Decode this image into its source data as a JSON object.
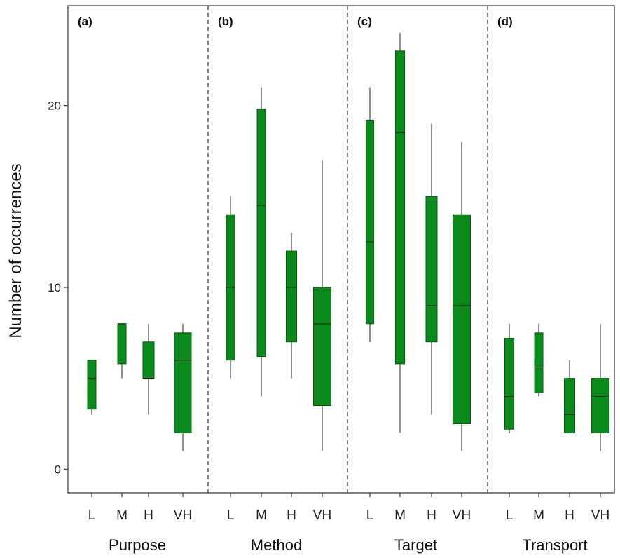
{
  "chart_data": {
    "type": "box",
    "ylabel": "Number of occurrences",
    "ylim": [
      -1.3,
      25.5
    ],
    "yticks": [
      0,
      10,
      20
    ],
    "colors": {
      "box_fill": "#0b8a1c",
      "box_stroke": "#0a5a12"
    },
    "panels": [
      {
        "label": "(a)",
        "group": "Purpose",
        "categories": [
          "L",
          "M",
          "H",
          "VH"
        ],
        "boxes": [
          {
            "min": 3.0,
            "q1": 3.3,
            "median": 5.0,
            "q3": 6.0,
            "max": 6.0
          },
          {
            "min": 5.0,
            "q1": 5.8,
            "median": 8.0,
            "q3": 8.0,
            "max": 8.0
          },
          {
            "min": 3.0,
            "q1": 5.0,
            "median": 5.0,
            "q3": 7.0,
            "max": 8.0
          },
          {
            "min": 1.0,
            "q1": 2.0,
            "median": 6.0,
            "q3": 7.5,
            "max": 8.0
          }
        ]
      },
      {
        "label": "(b)",
        "group": "Method",
        "categories": [
          "L",
          "M",
          "H",
          "VH"
        ],
        "boxes": [
          {
            "min": 5.0,
            "q1": 6.0,
            "median": 10.0,
            "q3": 14.0,
            "max": 15.0
          },
          {
            "min": 4.0,
            "q1": 6.2,
            "median": 14.5,
            "q3": 19.8,
            "max": 21.0
          },
          {
            "min": 5.0,
            "q1": 7.0,
            "median": 10.0,
            "q3": 12.0,
            "max": 13.0
          },
          {
            "min": 1.0,
            "q1": 3.5,
            "median": 8.0,
            "q3": 10.0,
            "max": 17.0
          }
        ]
      },
      {
        "label": "(c)",
        "group": "Target",
        "categories": [
          "L",
          "M",
          "H",
          "VH"
        ],
        "boxes": [
          {
            "min": 7.0,
            "q1": 8.0,
            "median": 12.5,
            "q3": 19.2,
            "max": 21.0
          },
          {
            "min": 2.0,
            "q1": 5.8,
            "median": 18.5,
            "q3": 23.0,
            "max": 24.0
          },
          {
            "min": 3.0,
            "q1": 7.0,
            "median": 9.0,
            "q3": 15.0,
            "max": 19.0
          },
          {
            "min": 1.0,
            "q1": 2.5,
            "median": 9.0,
            "q3": 14.0,
            "max": 18.0
          }
        ]
      },
      {
        "label": "(d)",
        "group": "Transport",
        "categories": [
          "L",
          "M",
          "H",
          "VH"
        ],
        "boxes": [
          {
            "min": 2.0,
            "q1": 2.2,
            "median": 4.0,
            "q3": 7.2,
            "max": 8.0
          },
          {
            "min": 4.0,
            "q1": 4.2,
            "median": 5.5,
            "q3": 7.5,
            "max": 8.0
          },
          {
            "min": 2.0,
            "q1": 2.0,
            "median": 3.0,
            "q3": 5.0,
            "max": 6.0
          },
          {
            "min": 1.0,
            "q1": 2.0,
            "median": 4.0,
            "q3": 5.0,
            "max": 8.0
          }
        ]
      }
    ]
  }
}
